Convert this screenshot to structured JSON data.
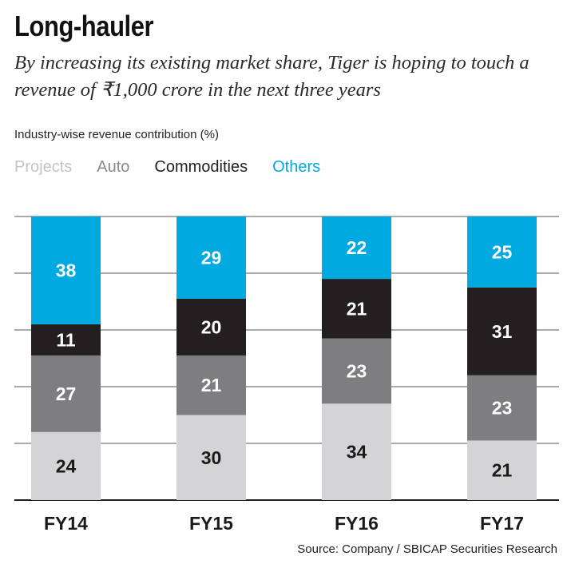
{
  "header": {
    "title": "Long-hauler",
    "subtitle": "By increasing its existing market share, Tiger is hoping to touch a revenue of ₹1,000 crore in the next three years"
  },
  "chart_label": "Industry-wise revenue contribution (%)",
  "source": "Source: Company / SBICAP Securities Research",
  "chart_data": {
    "type": "bar",
    "stacked": true,
    "categories": [
      "FY14",
      "FY15",
      "FY16",
      "FY17"
    ],
    "series": [
      {
        "name": "Projects",
        "color": "#d4d4d6",
        "label_color": "#1a1a1a",
        "values": [
          24,
          30,
          34,
          21
        ]
      },
      {
        "name": "Auto",
        "color": "#7e7e80",
        "label_color": "#ffffff",
        "values": [
          27,
          21,
          23,
          23
        ]
      },
      {
        "name": "Commodities",
        "color": "#231f20",
        "label_color": "#ffffff",
        "values": [
          11,
          20,
          21,
          31
        ]
      },
      {
        "name": "Others",
        "color": "#00a9e0",
        "label_color": "#ffffff",
        "values": [
          38,
          29,
          22,
          25
        ]
      }
    ],
    "ylim": [
      0,
      100
    ],
    "legend_position": "top-left",
    "grid": true
  }
}
